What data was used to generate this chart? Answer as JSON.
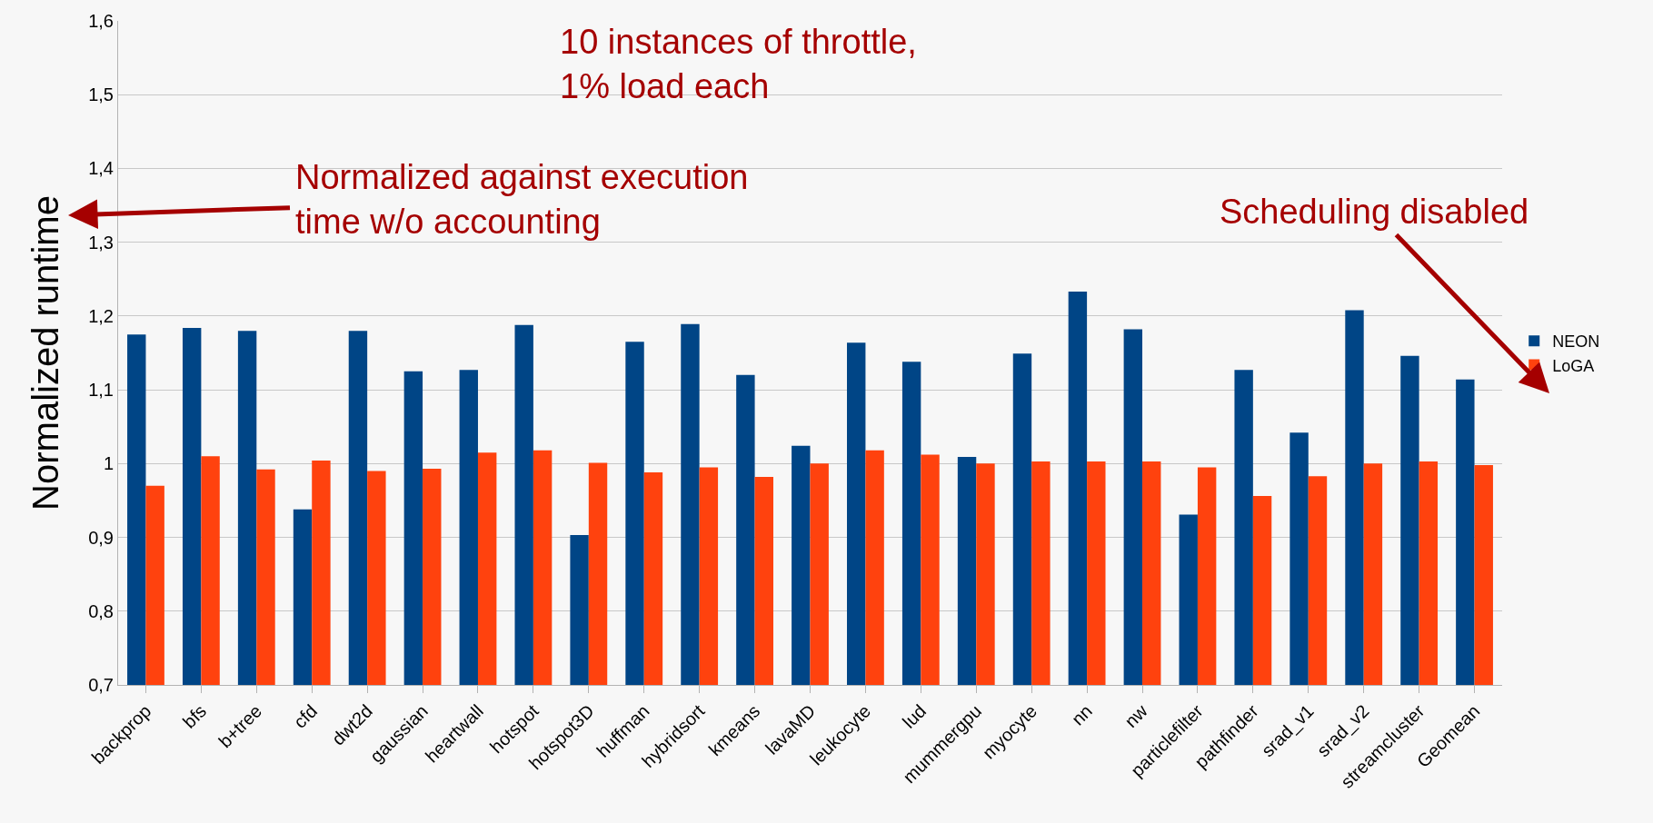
{
  "chart_data": {
    "type": "bar",
    "ylabel": "Normalized runtime",
    "categories": [
      "backprop",
      "bfs",
      "b+tree",
      "cfd",
      "dwt2d",
      "gaussian",
      "heartwall",
      "hotspot",
      "hotspot3D",
      "huffman",
      "hybridsort",
      "kmeans",
      "lavaMD",
      "leukocyte",
      "lud",
      "mummergpu",
      "myocyte",
      "nn",
      "nw",
      "particlefilter",
      "pathfinder",
      "srad_v1",
      "srad_v2",
      "streamcluster",
      "Geomean"
    ],
    "series": [
      {
        "name": "NEON",
        "color": "#004586",
        "values": [
          1.175,
          1.184,
          1.18,
          0.938,
          1.18,
          1.125,
          1.127,
          1.188,
          0.903,
          1.165,
          1.189,
          1.12,
          1.024,
          1.164,
          1.138,
          1.009,
          1.149,
          1.233,
          1.182,
          0.931,
          1.127,
          1.042,
          1.208,
          1.146,
          1.114
        ]
      },
      {
        "name": "LoGA",
        "color": "#ff420e",
        "values": [
          0.97,
          1.01,
          0.992,
          1.004,
          0.99,
          0.993,
          1.015,
          1.018,
          1.001,
          0.988,
          0.995,
          0.982,
          1.0,
          1.018,
          1.012,
          1.0,
          1.003,
          1.003,
          1.003,
          0.995,
          0.956,
          0.983,
          1.0,
          1.003,
          0.998
        ]
      }
    ],
    "ylim": [
      0.7,
      1.6
    ],
    "yticks": [
      {
        "value": 0.7,
        "label": "0,7"
      },
      {
        "value": 0.8,
        "label": "0,8"
      },
      {
        "value": 0.9,
        "label": "0,9"
      },
      {
        "value": 1,
        "label": "1"
      },
      {
        "value": 1.1,
        "label": "1,1"
      },
      {
        "value": 1.2,
        "label": "1,2"
      },
      {
        "value": 1.3,
        "label": "1,3"
      },
      {
        "value": 1.4,
        "label": "1,4"
      },
      {
        "value": 1.5,
        "label": "1,5"
      },
      {
        "value": 1.6,
        "label": "1,6"
      }
    ],
    "grid": "y",
    "legend": "right",
    "annotations": [
      "10 instances of throttle,\n1% load each",
      "Normalized against execution\ntime w/o accounting",
      "Scheduling disabled"
    ]
  }
}
